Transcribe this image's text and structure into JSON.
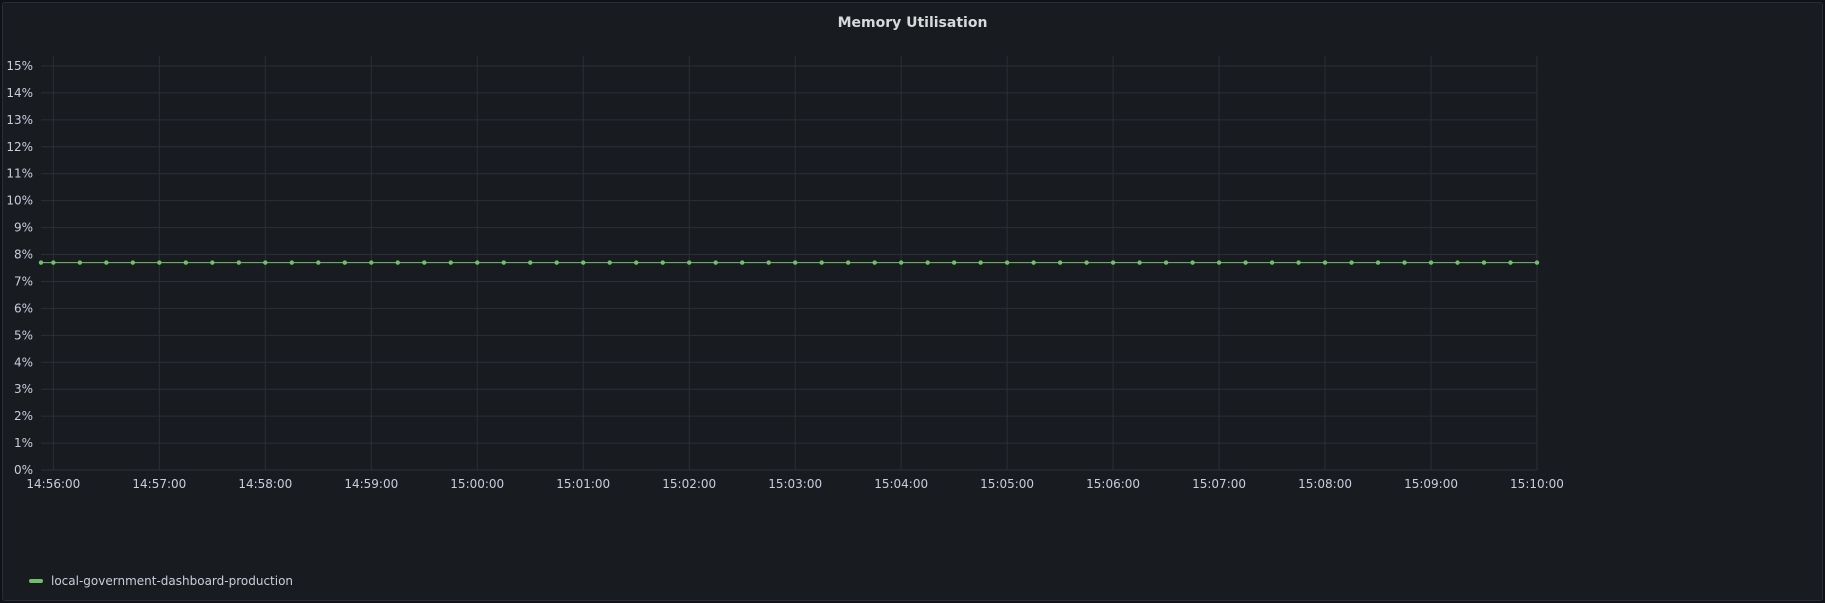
{
  "chart_data": {
    "type": "line",
    "title": "Memory Utilisation",
    "xlabel": "",
    "ylabel": "",
    "y_ticks": [
      "0%",
      "1%",
      "2%",
      "3%",
      "4%",
      "5%",
      "6%",
      "7%",
      "8%",
      "9%",
      "10%",
      "11%",
      "12%",
      "13%",
      "14%",
      "15%"
    ],
    "ylim": [
      0,
      15
    ],
    "x_ticks": [
      "14:56:00",
      "14:57:00",
      "14:58:00",
      "14:59:00",
      "15:00:00",
      "15:01:00",
      "15:02:00",
      "15:03:00",
      "15:04:00",
      "15:05:00",
      "15:06:00",
      "15:07:00",
      "15:08:00",
      "15:09:00",
      "15:10:00"
    ],
    "xlim": [
      "14:55:53",
      "15:10:00"
    ],
    "x_interval_seconds": 15,
    "grid": true,
    "legend_position": "bottom-left",
    "series": [
      {
        "name": "local-government-dashboard-production",
        "color": "#73bf69",
        "x": [
          "14:55:45",
          "14:56:00",
          "14:56:15",
          "14:56:30",
          "14:56:45",
          "14:57:00",
          "14:57:15",
          "14:57:30",
          "14:57:45",
          "14:58:00",
          "14:58:15",
          "14:58:30",
          "14:58:45",
          "14:59:00",
          "14:59:15",
          "14:59:30",
          "14:59:45",
          "15:00:00",
          "15:00:15",
          "15:00:30",
          "15:00:45",
          "15:01:00",
          "15:01:15",
          "15:01:30",
          "15:01:45",
          "15:02:00",
          "15:02:15",
          "15:02:30",
          "15:02:45",
          "15:03:00",
          "15:03:15",
          "15:03:30",
          "15:03:45",
          "15:04:00",
          "15:04:15",
          "15:04:30",
          "15:04:45",
          "15:05:00",
          "15:05:15",
          "15:05:30",
          "15:05:45",
          "15:06:00",
          "15:06:15",
          "15:06:30",
          "15:06:45",
          "15:07:00",
          "15:07:15",
          "15:07:30",
          "15:07:45",
          "15:08:00",
          "15:08:15",
          "15:08:30",
          "15:08:45",
          "15:09:00",
          "15:09:15",
          "15:09:30",
          "15:09:45",
          "15:10:00"
        ],
        "values": [
          7.7,
          7.7,
          7.7,
          7.7,
          7.7,
          7.7,
          7.7,
          7.7,
          7.7,
          7.7,
          7.7,
          7.7,
          7.7,
          7.7,
          7.7,
          7.7,
          7.7,
          7.7,
          7.7,
          7.7,
          7.7,
          7.7,
          7.7,
          7.7,
          7.7,
          7.7,
          7.7,
          7.7,
          7.7,
          7.7,
          7.7,
          7.7,
          7.7,
          7.7,
          7.7,
          7.7,
          7.7,
          7.7,
          7.7,
          7.7,
          7.7,
          7.7,
          7.7,
          7.7,
          7.7,
          7.7,
          7.7,
          7.7,
          7.7,
          7.7,
          7.7,
          7.7,
          7.7,
          7.7,
          7.7,
          7.7,
          7.7,
          7.7
        ]
      }
    ]
  }
}
